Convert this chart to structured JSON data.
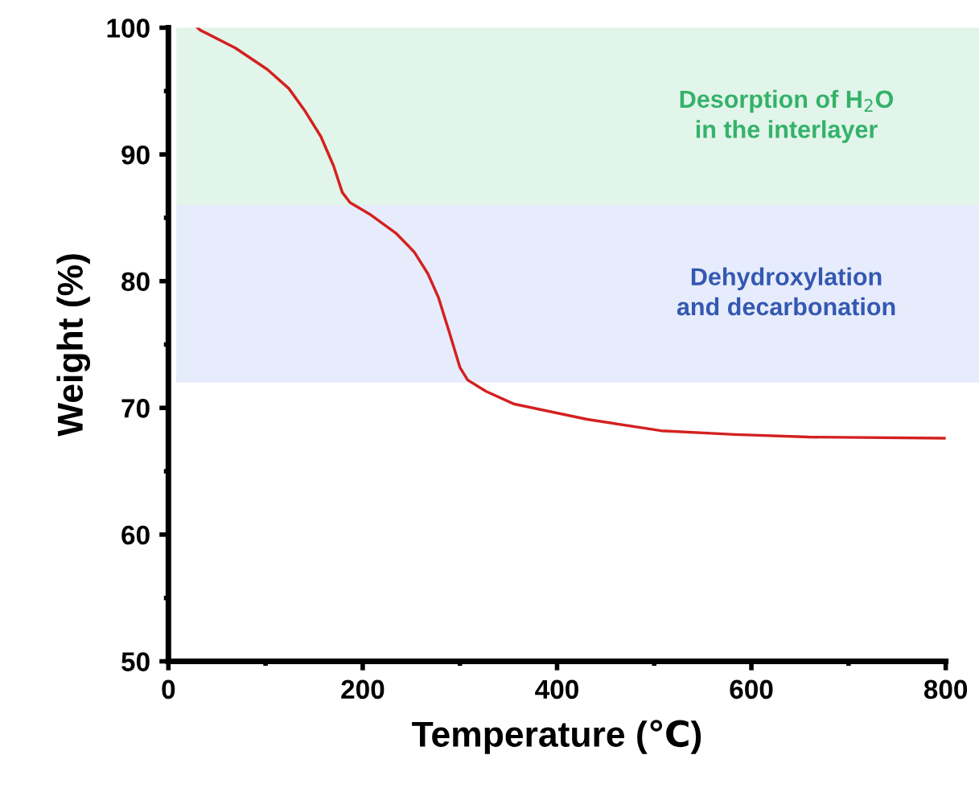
{
  "chart_data": {
    "type": "line",
    "xlabel": "Temperature (℃)",
    "ylabel": "Weight (%)",
    "x": [
      30,
      33,
      69,
      102,
      124,
      140,
      157,
      170,
      179,
      187,
      207,
      234,
      253,
      267,
      278,
      289,
      300,
      308,
      327,
      356,
      431,
      507,
      583,
      659,
      800
    ],
    "series": [
      {
        "color": "#d42020",
        "values": [
          100,
          99.8,
          98.4,
          96.7,
          95.2,
          93.5,
          91.4,
          89.1,
          87.0,
          86.2,
          85.3,
          83.8,
          82.3,
          80.6,
          78.7,
          76.0,
          73.2,
          72.2,
          71.3,
          70.3,
          69.1,
          68.2,
          67.9,
          67.7,
          67.6
        ]
      }
    ],
    "xlim": [
      0,
      800
    ],
    "ylim": [
      50,
      100
    ],
    "xticks": [
      0,
      {
        "value": 100,
        "label": null
      },
      200,
      {
        "value": 300,
        "label": null
      },
      400,
      {
        "value": 500,
        "label": null
      },
      600,
      {
        "value": 700,
        "label": null
      },
      800
    ],
    "yticks": [
      50,
      {
        "value": 55,
        "label": null
      },
      60,
      {
        "value": 65,
        "label": null
      },
      70,
      {
        "value": 75,
        "label": null
      },
      80,
      {
        "value": 85,
        "label": null
      },
      90,
      {
        "value": 95,
        "label": null
      },
      100
    ],
    "bands": [
      {
        "axis": "y",
        "from": 86,
        "to": 100,
        "label": "Desorption of H$_{2}$O\nin the interlayer",
        "color": "#e2f5ea"
      },
      {
        "axis": "y",
        "from": 72,
        "to": 86,
        "label": "Dehydroxylation\nand decarbonation",
        "color": "#e6ecfb"
      }
    ],
    "grid": false,
    "marker": "none",
    "line_style": "solid"
  }
}
